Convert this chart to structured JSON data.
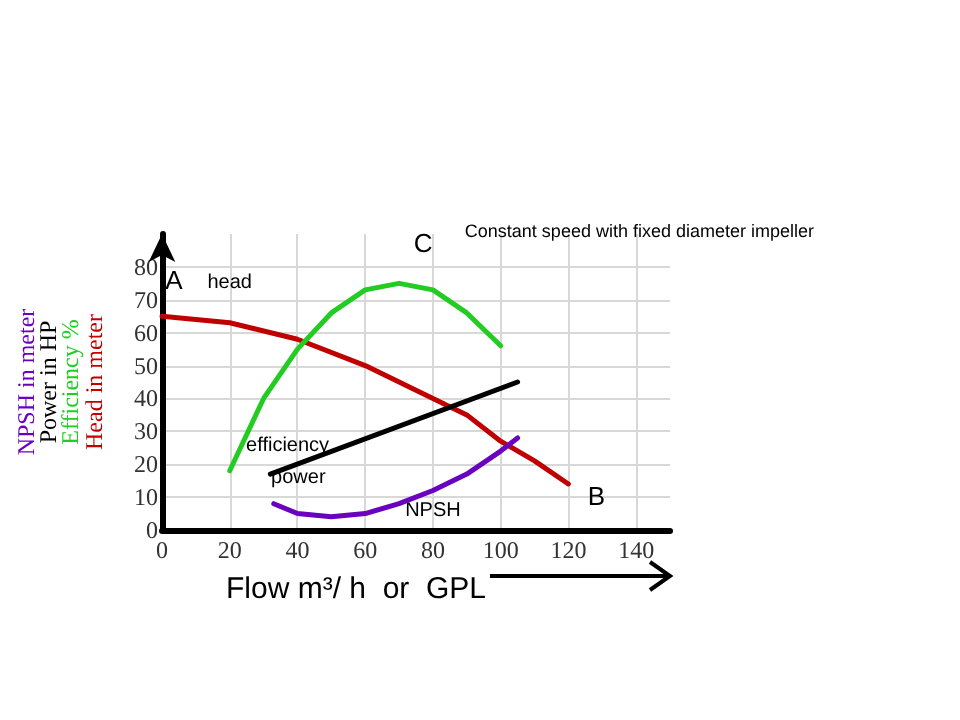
{
  "chart_data": {
    "type": "line",
    "title": "Constant speed with fixed diameter impeller",
    "xlabel": "Flow m³/ h  or  GPL",
    "ylabel": "Head in meter",
    "annotations": [
      "Efficiency %",
      "Power in HP",
      "NPSH in meter",
      {
        "text": "A",
        "x": 0,
        "y": 65
      },
      {
        "text": "B",
        "x": 120,
        "y": 14
      },
      {
        "text": "C",
        "x": 70,
        "y": 75
      }
    ],
    "xlim": [
      0,
      150
    ],
    "xticks": [
      0,
      20,
      40,
      60,
      80,
      100,
      120,
      140
    ],
    "ylim": [
      0,
      90
    ],
    "yticks": [
      0,
      10,
      20,
      30,
      40,
      50,
      60,
      70,
      80
    ],
    "grid": true,
    "marker": "none",
    "series": [
      {
        "name": "head",
        "color": "#c00000",
        "x": [
          0,
          20,
          40,
          60,
          80,
          90,
          100,
          110,
          120
        ],
        "values": [
          65,
          63,
          58,
          50,
          40,
          35,
          27,
          21,
          14
        ]
      },
      {
        "name": "efficiency",
        "color": "#22cc22",
        "x": [
          20,
          30,
          40,
          50,
          60,
          70,
          80,
          90,
          100
        ],
        "values": [
          18,
          40,
          55,
          66,
          73,
          75,
          73,
          66,
          56
        ]
      },
      {
        "name": "power",
        "color": "#000000",
        "x": [
          32,
          105
        ],
        "values": [
          17,
          45
        ]
      },
      {
        "name": "NPSH",
        "color": "#6a00c0",
        "x": [
          33,
          40,
          50,
          60,
          70,
          80,
          90,
          100,
          105
        ],
        "values": [
          8,
          5,
          4,
          5,
          8,
          12,
          17,
          24,
          28
        ]
      }
    ]
  }
}
